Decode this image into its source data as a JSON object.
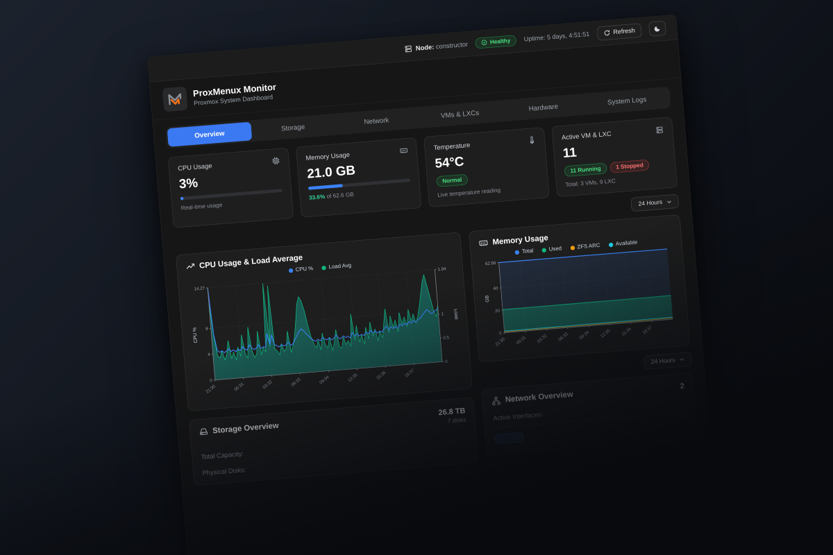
{
  "topbar": {
    "node_label": "Node:",
    "node_value": "constructor",
    "health": "Healthy",
    "uptime": "Uptime: 5 days, 4:51:51",
    "refresh_label": "Refresh"
  },
  "header": {
    "title": "ProxMenux Monitor",
    "subtitle": "Proxmox System Dashboard"
  },
  "tabs": [
    {
      "label": "Overview",
      "active": true
    },
    {
      "label": "Storage",
      "active": false
    },
    {
      "label": "Network",
      "active": false
    },
    {
      "label": "VMs & LXCs",
      "active": false
    },
    {
      "label": "Hardware",
      "active": false
    },
    {
      "label": "System Logs",
      "active": false
    }
  ],
  "stats": {
    "cpu": {
      "title": "CPU Usage",
      "value": "3%",
      "percent": 3,
      "caption": "Real-time usage"
    },
    "memory": {
      "title": "Memory Usage",
      "value": "21.0 GB",
      "percent": 33.6,
      "caption_highlight": "33.6%",
      "caption_rest": " of 62.6 GB"
    },
    "temperature": {
      "title": "Temperature",
      "value": "54°C",
      "badge": "Normal",
      "caption": "Live temperature reading"
    },
    "vms": {
      "title": "Active VM & LXC",
      "value": "11",
      "running": "11 Running",
      "stopped": "1 Stopped",
      "caption": "Total: 3 VMs, 9 LXC"
    }
  },
  "range_selector": {
    "label": "24 Hours"
  },
  "chart_data": [
    {
      "id": "cpu_load",
      "type": "area",
      "title": "CPU Usage & Load Average",
      "legend": [
        {
          "name": "CPU %",
          "color": "#3b82f6"
        },
        {
          "name": "Load Avg",
          "color": "#10b981"
        }
      ],
      "x_labels": [
        "21:30",
        "00:31",
        "03:32",
        "06:33",
        "09:34",
        "12:35",
        "15:36",
        "18:37"
      ],
      "y_left": {
        "label": "CPU %",
        "ticks": [
          0,
          4,
          8,
          14.27
        ],
        "max": 14.27
      },
      "y_right": {
        "label": "Load",
        "ticks": [
          0,
          0.5,
          1,
          1.94
        ],
        "max": 1.94
      },
      "grid": true,
      "legend_position": "top",
      "series": [
        {
          "name": "Load Avg",
          "axis": "right",
          "color": "#10b981",
          "fill": "#14b8a6",
          "fill_opacity": 0.4,
          "width": 1.1,
          "values": [
            1.6,
            0.9,
            0.5,
            0.45,
            0.6,
            0.4,
            0.52,
            0.8,
            0.42,
            0.55,
            0.38,
            0.65,
            0.45,
            0.9,
            0.5,
            0.4,
            1.05,
            0.55,
            0.4,
            0.48,
            0.95,
            0.45,
            0.6,
            0.5,
            1.94,
            0.6,
            1.88,
            0.55,
            0.5,
            0.42,
            0.65,
            0.48,
            0.55,
            0.9,
            0.45,
            0.6,
            0.8,
            1.1,
            1.45,
            1.6,
            1.5,
            1.3,
            1.0,
            0.75,
            0.6,
            0.5,
            0.65,
            0.45,
            0.8,
            0.55,
            0.48,
            0.7,
            0.42,
            0.6,
            0.85,
            0.5,
            0.45,
            0.68,
            0.52,
            0.6,
            0.48,
            1.15,
            0.6,
            0.9,
            0.55,
            0.7,
            0.5,
            0.85,
            0.6,
            0.95,
            0.65,
            0.8,
            0.55,
            0.75,
            0.6,
            0.9,
            1.2,
            0.7,
            1.05,
            0.8,
            0.95,
            0.7,
            1.1,
            0.85,
            1.0,
            0.8,
            1.15,
            0.9,
            1.05,
            0.85,
            1.0,
            1.2,
            1.45,
            1.7,
            1.85,
            1.6,
            1.35,
            1.1,
            0.95,
            1.2
          ]
        },
        {
          "name": "CPU %",
          "axis": "left",
          "color": "#3b82f6",
          "width": 1.6,
          "values": [
            14.27,
            7.0,
            4.5,
            4.2,
            4.4,
            4.1,
            4.3,
            4.6,
            4.2,
            4.4,
            4.1,
            4.5,
            4.2,
            4.8,
            4.4,
            4.2,
            5.0,
            4.5,
            4.2,
            4.4,
            4.9,
            4.3,
            4.5,
            4.4,
            6.5,
            4.8,
            6.2,
            4.7,
            4.5,
            4.3,
            4.6,
            4.4,
            4.5,
            4.9,
            4.4,
            4.6,
            5.2,
            5.8,
            6.4,
            6.8,
            6.5,
            6.0,
            5.6,
            5.2,
            4.9,
            4.7,
            5.0,
            4.7,
            5.2,
            4.9,
            4.8,
            5.1,
            4.7,
            5.0,
            5.4,
            4.9,
            4.8,
            5.2,
            4.9,
            5.1,
            4.8,
            5.6,
            5.0,
            5.3,
            5.0,
            5.2,
            5.0,
            5.5,
            5.2,
            5.7,
            5.3,
            5.6,
            5.2,
            5.5,
            5.3,
            5.8,
            6.2,
            5.6,
            6.0,
            5.7,
            6.0,
            5.7,
            6.3,
            6.0,
            6.4,
            6.1,
            6.6,
            6.3,
            6.7,
            6.4,
            6.8,
            7.0,
            7.4,
            7.8,
            8.2,
            7.9,
            7.5,
            7.8,
            8.0,
            8.3
          ]
        }
      ]
    },
    {
      "id": "memory",
      "type": "area",
      "title": "Memory Usage",
      "legend": [
        {
          "name": "Total",
          "color": "#3b82f6"
        },
        {
          "name": "Used",
          "color": "#10b981"
        },
        {
          "name": "ZFS ARC",
          "color": "#f59e0b"
        },
        {
          "name": "Available",
          "color": "#22d3ee"
        }
      ],
      "x_labels": [
        "21:30",
        "00:31",
        "03:32",
        "06:33",
        "09:34",
        "12:35",
        "15:36",
        "18:37"
      ],
      "y_left": {
        "label": "GB",
        "ticks": [
          0,
          20,
          40,
          62.56
        ],
        "max": 62.56
      },
      "grid": true,
      "legend_position": "top",
      "series": [
        {
          "name": "Total",
          "axis": "left",
          "color": "#3b82f6",
          "fill": "#3b82f6",
          "fill_opacity": 0.13,
          "width": 1.8,
          "values": [
            62.56,
            62.56,
            62.56,
            62.56,
            62.56,
            62.56,
            62.56,
            62.56,
            62.56
          ]
        },
        {
          "name": "Used",
          "axis": "left",
          "color": "#10b981",
          "fill": "#10b981",
          "fill_opacity": 0.38,
          "width": 1.5,
          "values": [
            20.6,
            20.7,
            20.7,
            20.8,
            20.9,
            20.9,
            21.0,
            21.1,
            21.2
          ]
        },
        {
          "name": "ZFS ARC",
          "axis": "left",
          "color": "#f59e0b",
          "width": 1.2,
          "values": [
            0.8,
            0.8,
            0.9,
            0.9,
            0.9,
            1.0,
            1.0,
            1.0,
            1.1
          ]
        },
        {
          "name": "Available",
          "axis": "left",
          "color": "#22d3ee",
          "width": 1.5,
          "values": [
            1.5,
            1.5,
            1.6,
            1.6,
            1.7,
            1.7,
            1.8,
            1.8,
            1.9
          ]
        }
      ]
    }
  ],
  "storage": {
    "title": "Storage Overview",
    "summary_value": "26.8 TB",
    "summary_sub": "7 disks",
    "rows": [
      {
        "label": "Total Capacity:"
      },
      {
        "label": "Physical Disks:"
      }
    ]
  },
  "network": {
    "title": "Network Overview",
    "summary_value": "2",
    "rows": [
      {
        "label": "Active Interfaces:"
      }
    ],
    "interface_pill": ""
  }
}
